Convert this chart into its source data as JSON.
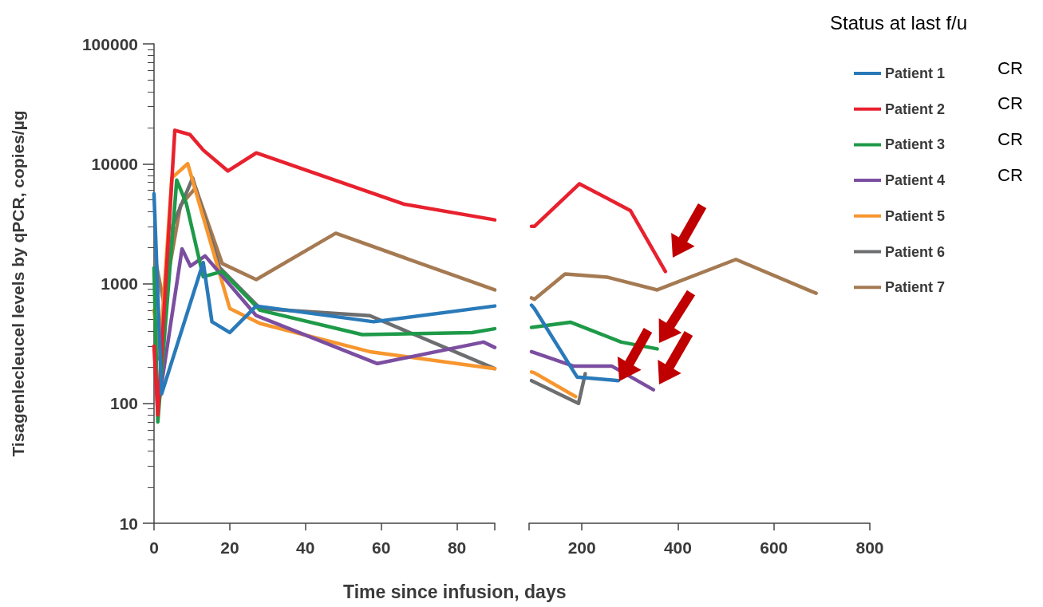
{
  "chart_data": [
    {
      "type": "line",
      "xlabel": "Time since infusion, days",
      "ylabel": "Tisagenlecleucel levels by qPCR, copies/µg",
      "xlim": [
        0,
        90
      ],
      "xticks": [
        0,
        20,
        40,
        60,
        80,
        {
          "value": 90,
          "label": null
        }
      ],
      "ylim": [
        10,
        100000
      ],
      "yticks": [
        10,
        100,
        1000,
        10000,
        100000
      ],
      "log": "y",
      "grid": false,
      "legend": false,
      "marker": "none",
      "line_style": "solid",
      "series": [
        {
          "color": "#2a7ab9",
          "x": [
            0,
            2,
            13,
            15.3,
            20,
            27,
            58,
            90
          ],
          "values": [
            5600,
            120,
            1500,
            480,
            390,
            650,
            480,
            650
          ]
        },
        {
          "color": "#e8212e",
          "x": [
            0,
            1,
            5.5,
            9.5,
            13,
            19.5,
            27,
            66,
            90
          ],
          "values": [
            300,
            80,
            19000,
            17500,
            13000,
            8700,
            12300,
            4600,
            3400
          ]
        },
        {
          "color": "#1e9a48",
          "x": [
            0,
            1,
            6,
            8.5,
            13,
            18,
            28,
            55,
            84,
            90
          ],
          "values": [
            1350,
            70,
            7300,
            4700,
            1140,
            1260,
            600,
            375,
            390,
            420
          ]
        },
        {
          "color": "#7b4ea0",
          "x": [
            1,
            7.4,
            9.6,
            13.5,
            27,
            59,
            87,
            90
          ],
          "values": [
            90,
            1950,
            1400,
            1700,
            540,
            215,
            325,
            293
          ]
        },
        {
          "color": "#f7962e",
          "x": [
            0,
            1.5,
            4.7,
            8.9,
            20,
            28,
            57,
            90
          ],
          "values": [
            600,
            250,
            7600,
            10000,
            620,
            465,
            270,
            195
          ]
        },
        {
          "color": "#6d6e70",
          "x": [
            1,
            2,
            5,
            10.2,
            17.3,
            28,
            57,
            90
          ],
          "values": [
            250,
            220,
            3100,
            7600,
            1360,
            620,
            540,
            195
          ]
        },
        {
          "color": "#a57a52",
          "x": [
            0.5,
            2.5,
            7,
            11,
            18,
            27,
            48,
            90
          ],
          "values": [
            1500,
            710,
            4500,
            6300,
            1470,
            1080,
            2630,
            885
          ]
        }
      ]
    },
    {
      "type": "line",
      "legend_title": "Status at last f/u",
      "annotations": [
        "CR",
        "CR",
        "CR",
        "CR"
      ],
      "xlim": [
        90,
        800
      ],
      "xticks": [
        {
          "value": 90,
          "label": null
        },
        200,
        400,
        600,
        800
      ],
      "ylim": [
        10,
        100000
      ],
      "yticks": [
        10,
        100,
        1000,
        10000,
        100000
      ],
      "log": "y",
      "grid": false,
      "legend": "top right",
      "tick_labels": "x",
      "marker": "none",
      "line_style": "solid",
      "series": [
        {
          "name": "Patient 1",
          "color": "#2a7ab9",
          "x": [
            95,
            101,
            190,
            276
          ],
          "values": [
            660,
            620,
            166,
            155
          ]
        },
        {
          "name": "Patient 2",
          "color": "#e8212e",
          "x": [
            95,
            101,
            195,
            301,
            374
          ],
          "values": [
            3000,
            3000,
            6800,
            4070,
            1260
          ]
        },
        {
          "name": "Patient 3",
          "color": "#1e9a48",
          "x": [
            95,
            176,
            282,
            357
          ],
          "values": [
            430,
            476,
            325,
            285
          ]
        },
        {
          "name": "Patient 4",
          "color": "#7b4ea0",
          "x": [
            95,
            182,
            262,
            349
          ],
          "values": [
            270,
            205,
            205,
            130
          ]
        },
        {
          "name": "Patient 5",
          "color": "#f7962e",
          "x": [
            95,
            101,
            187
          ],
          "values": [
            183,
            180,
            114
          ]
        },
        {
          "name": "Patient 6",
          "color": "#6d6e70",
          "x": [
            95,
            193,
            207
          ],
          "values": [
            155,
            100,
            177
          ]
        },
        {
          "name": "Patient 7",
          "color": "#a57a52",
          "x": [
            95,
            101,
            165,
            253,
            357,
            521,
            688
          ],
          "values": [
            760,
            740,
            1200,
            1130,
            885,
            1590,
            830
          ]
        }
      ]
    }
  ]
}
